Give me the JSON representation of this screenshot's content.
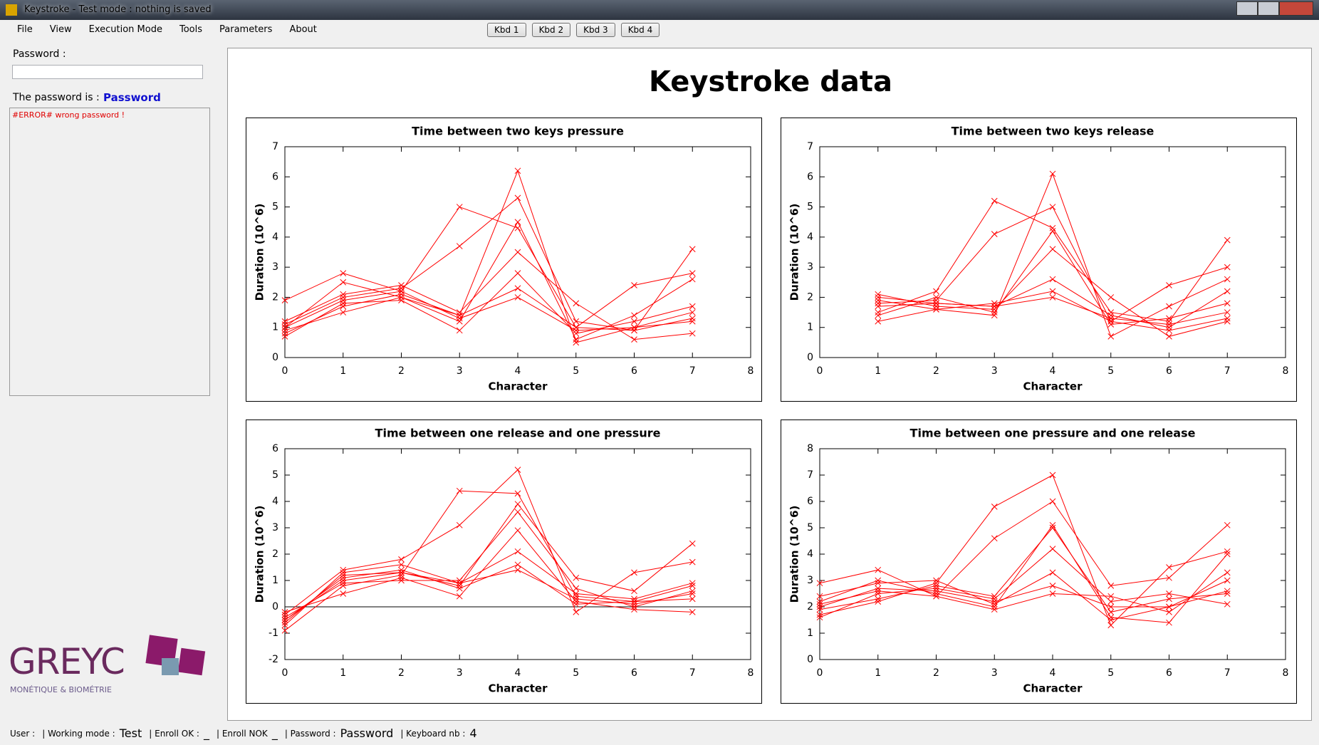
{
  "window": {
    "title": "Keystroke - Test mode : nothing is saved"
  },
  "menu": [
    "File",
    "View",
    "Execution Mode",
    "Tools",
    "Parameters",
    "About"
  ],
  "toolbar": [
    "Kbd 1",
    "Kbd 2",
    "Kbd 3",
    "Kbd 4"
  ],
  "sidebar": {
    "password_label": "Password :",
    "password_is_label": "The password is :",
    "password_value": "Password",
    "log": "#ERROR# wrong password !",
    "logo_name": "GREYC",
    "logo_subtitle": "MONÉTIQUE & BIOMÉTRIE"
  },
  "panel_title": "Keystroke data",
  "chart_data": [
    {
      "type": "line",
      "title": "Time between two keys pressure",
      "x_label": "Character",
      "y_label": "Duration (10^6)",
      "color": "#ff0000",
      "marker": "x",
      "x": [
        0,
        1,
        2,
        3,
        4,
        5,
        6,
        7
      ],
      "xlim": [
        0,
        8
      ],
      "xticks": [
        0,
        1,
        2,
        3,
        4,
        5,
        6,
        7,
        8
      ],
      "ylim": [
        0,
        7
      ],
      "yticks": [
        0,
        1,
        2,
        3,
        4,
        5,
        6,
        7
      ],
      "series": [
        {
          "values": [
            1.0,
            1.9,
            2.2,
            1.3,
            2.0,
            0.9,
            1.0,
            1.5
          ]
        },
        {
          "values": [
            0.8,
            1.7,
            2.1,
            1.4,
            6.2,
            0.5,
            1.0,
            1.2
          ]
        },
        {
          "values": [
            1.9,
            2.8,
            2.2,
            5.0,
            4.3,
            1.0,
            2.4,
            2.8
          ]
        },
        {
          "values": [
            1.1,
            2.0,
            2.3,
            3.7,
            5.3,
            1.2,
            0.9,
            3.6
          ]
        },
        {
          "values": [
            0.9,
            1.5,
            2.0,
            1.2,
            4.5,
            0.6,
            1.4,
            2.6
          ]
        },
        {
          "values": [
            1.2,
            2.1,
            2.4,
            1.5,
            3.5,
            1.8,
            0.6,
            0.8
          ]
        },
        {
          "values": [
            0.7,
            1.8,
            1.9,
            0.9,
            2.8,
            0.8,
            1.2,
            1.7
          ]
        },
        {
          "values": [
            1.0,
            2.5,
            2.0,
            1.4,
            2.3,
            1.0,
            0.9,
            1.3
          ]
        }
      ]
    },
    {
      "type": "line",
      "title": "Time between two keys release",
      "x_label": "Character",
      "y_label": "Duration (10^6)",
      "color": "#ff0000",
      "marker": "x",
      "x": [
        1,
        2,
        3,
        4,
        5,
        6,
        7
      ],
      "xlim": [
        0,
        8
      ],
      "xticks": [
        0,
        1,
        2,
        3,
        4,
        5,
        6,
        7,
        8
      ],
      "ylim": [
        0,
        7
      ],
      "yticks": [
        0,
        1,
        2,
        3,
        4,
        5,
        6,
        7
      ],
      "series": [
        {
          "values": [
            2.0,
            1.8,
            1.7,
            2.0,
            1.3,
            1.1,
            1.5
          ]
        },
        {
          "values": [
            1.5,
            2.2,
            5.2,
            4.3,
            1.5,
            1.2,
            3.9
          ]
        },
        {
          "values": [
            1.8,
            1.9,
            4.1,
            5.0,
            1.2,
            2.4,
            3.0
          ]
        },
        {
          "values": [
            1.2,
            1.6,
            1.4,
            6.1,
            0.7,
            1.7,
            2.6
          ]
        },
        {
          "values": [
            2.1,
            1.7,
            1.6,
            3.6,
            2.0,
            0.7,
            1.2
          ]
        },
        {
          "values": [
            1.7,
            1.8,
            1.7,
            2.6,
            1.4,
            1.0,
            2.2
          ]
        },
        {
          "values": [
            1.4,
            2.0,
            1.5,
            4.2,
            1.1,
            1.3,
            1.8
          ]
        },
        {
          "values": [
            1.9,
            1.6,
            1.8,
            2.2,
            1.2,
            0.9,
            1.3
          ]
        }
      ]
    },
    {
      "type": "line",
      "title": "Time between one release and one pressure",
      "x_label": "Character",
      "y_label": "Duration (10^6)",
      "color": "#ff0000",
      "marker": "x",
      "zero_line": true,
      "x": [
        0,
        1,
        2,
        3,
        4,
        5,
        6,
        7
      ],
      "xlim": [
        0,
        8
      ],
      "xticks": [
        0,
        1,
        2,
        3,
        4,
        5,
        6,
        7,
        8
      ],
      "ylim": [
        -2,
        6
      ],
      "yticks": [
        -2,
        -1,
        0,
        1,
        2,
        3,
        4,
        5,
        6
      ],
      "series": [
        {
          "values": [
            -0.5,
            1.0,
            1.3,
            0.9,
            1.4,
            0.3,
            0.1,
            0.5
          ]
        },
        {
          "values": [
            -0.9,
            0.8,
            1.2,
            4.4,
            4.3,
            0.4,
            0.2,
            0.3
          ]
        },
        {
          "values": [
            -0.3,
            1.4,
            1.8,
            3.1,
            5.2,
            -0.2,
            1.3,
            1.7
          ]
        },
        {
          "values": [
            -0.6,
            1.2,
            1.3,
            0.8,
            3.9,
            1.1,
            0.6,
            2.4
          ]
        },
        {
          "values": [
            -0.2,
            0.5,
            1.1,
            0.4,
            2.9,
            0.2,
            -0.1,
            -0.2
          ]
        },
        {
          "values": [
            -0.7,
            1.3,
            1.6,
            0.9,
            2.1,
            0.5,
            0.3,
            0.9
          ]
        },
        {
          "values": [
            -0.4,
            0.9,
            1.0,
            1.0,
            3.6,
            0.7,
            0.0,
            0.6
          ]
        },
        {
          "values": [
            -0.5,
            1.1,
            1.4,
            0.7,
            1.6,
            0.1,
            0.2,
            0.8
          ]
        }
      ]
    },
    {
      "type": "line",
      "title": "Time between one pressure and one release",
      "x_label": "Character",
      "y_label": "Duration (10^6)",
      "color": "#ff0000",
      "marker": "x",
      "x": [
        0,
        1,
        2,
        3,
        4,
        5,
        6,
        7
      ],
      "xlim": [
        0,
        8
      ],
      "xticks": [
        0,
        1,
        2,
        3,
        4,
        5,
        6,
        7,
        8
      ],
      "ylim": [
        0,
        8
      ],
      "yticks": [
        0,
        1,
        2,
        3,
        4,
        5,
        6,
        7,
        8
      ],
      "series": [
        {
          "values": [
            2.0,
            2.7,
            2.6,
            2.2,
            2.8,
            2.0,
            2.0,
            2.6
          ]
        },
        {
          "values": [
            1.7,
            2.2,
            2.9,
            5.8,
            7.0,
            1.3,
            3.5,
            4.1
          ]
        },
        {
          "values": [
            2.9,
            3.4,
            2.4,
            4.6,
            6.0,
            2.8,
            3.1,
            5.1
          ]
        },
        {
          "values": [
            2.2,
            3.0,
            2.5,
            2.0,
            5.1,
            1.6,
            1.4,
            4.0
          ]
        },
        {
          "values": [
            1.6,
            2.5,
            2.7,
            2.3,
            4.2,
            2.2,
            2.5,
            2.1
          ]
        },
        {
          "values": [
            2.4,
            2.9,
            3.0,
            2.1,
            3.3,
            1.5,
            2.0,
            3.0
          ]
        },
        {
          "values": [
            1.9,
            2.3,
            2.8,
            2.4,
            5.0,
            1.8,
            2.3,
            2.5
          ]
        },
        {
          "values": [
            2.1,
            2.6,
            2.4,
            1.9,
            2.5,
            2.4,
            1.8,
            3.3
          ]
        }
      ]
    }
  ],
  "status": [
    {
      "label": "User :"
    },
    {
      "label": "| Working mode :",
      "value": "Test"
    },
    {
      "label": "| Enroll OK :",
      "value": "_"
    },
    {
      "label": "| Enroll NOK",
      "value": "_"
    },
    {
      "label": "| Password :",
      "value": "Password"
    },
    {
      "label": "| Keyboard nb :",
      "value": 4
    }
  ]
}
